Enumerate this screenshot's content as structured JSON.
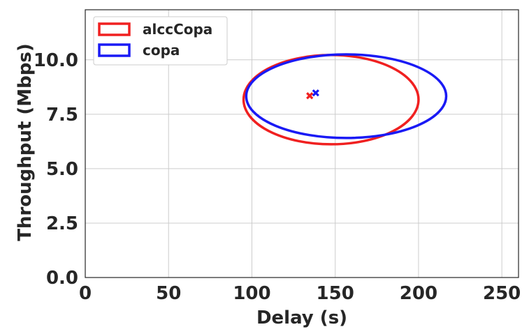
{
  "chart_data": {
    "type": "scatter",
    "xlabel": "Delay (s)",
    "ylabel": "Throughput (Mbps)",
    "xlim": [
      0,
      260
    ],
    "ylim": [
      0,
      12.3
    ],
    "xticks": [
      0,
      50,
      100,
      150,
      200,
      250
    ],
    "yticks": [
      0.0,
      2.5,
      5.0,
      7.5,
      10.0
    ],
    "xtick_labels": [
      "0",
      "50",
      "100",
      "150",
      "200",
      "250"
    ],
    "ytick_labels": [
      "0.0",
      "2.5",
      "5.0",
      "7.5",
      "10.0"
    ],
    "grid": true,
    "legend_position": "top-left",
    "series": [
      {
        "name": "alccCopa",
        "color": "#f02020",
        "mean": {
          "x": 134.7,
          "y": 8.35
        },
        "ellipse": {
          "cx": 147.5,
          "cy": 8.17,
          "rx": 52.5,
          "ry": 2.05
        }
      },
      {
        "name": "copa",
        "color": "#1a1af5",
        "mean": {
          "x": 138.3,
          "y": 8.48
        },
        "ellipse": {
          "cx": 156.6,
          "cy": 8.33,
          "rx": 60.0,
          "ry": 1.92
        }
      }
    ]
  }
}
